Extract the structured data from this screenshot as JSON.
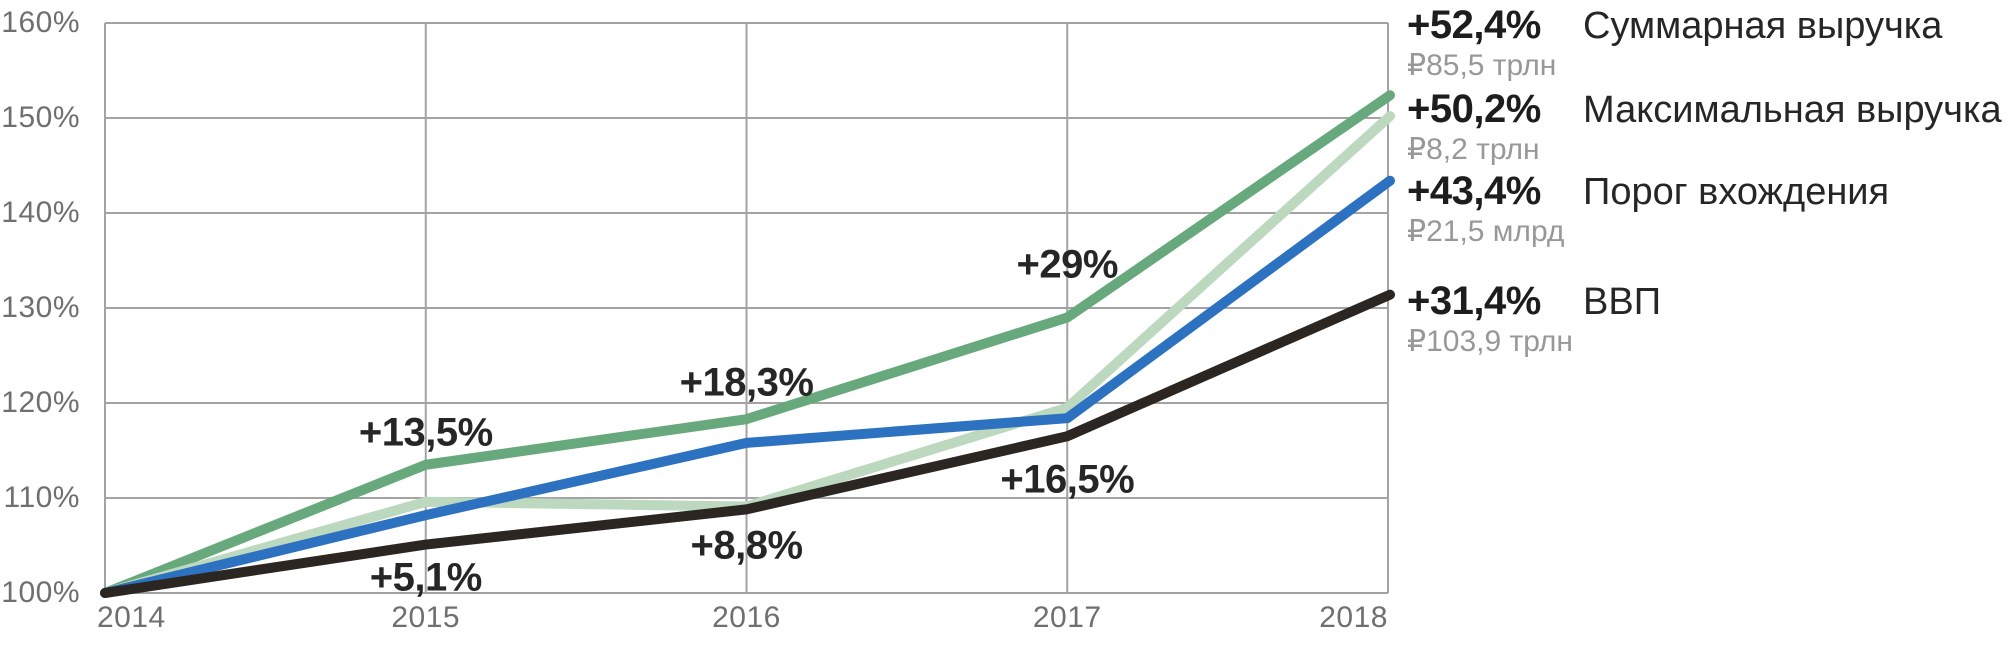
{
  "chart_data": {
    "type": "line",
    "title": "",
    "xlabel": "",
    "ylabel": "",
    "x": [
      2014,
      2015,
      2016,
      2017,
      2018
    ],
    "x_tick_labels": [
      "2014",
      "2015",
      "2016",
      "2017",
      "2018"
    ],
    "y_tick_labels": [
      "160%",
      "150%",
      "140%",
      "130%",
      "120%",
      "110%",
      "100%"
    ],
    "ylim": [
      100,
      160
    ],
    "grid": true,
    "legend_position": "right",
    "series": [
      {
        "name": "Суммарная выручка",
        "color": "#67a97c",
        "values": [
          100,
          113.5,
          118.3,
          129,
          152.4
        ],
        "final_label": "+52,4%",
        "final_value": "₽85,5 трлн"
      },
      {
        "name": "Максимальная выручка",
        "color": "#bcd9bf",
        "values": [
          100,
          109.6,
          109.1,
          119.5,
          150.2
        ],
        "final_label": "+50,2%",
        "final_value": "₽8,2 трлн"
      },
      {
        "name": "Порог вхождения",
        "color": "#2d72c1",
        "values": [
          100,
          108.2,
          115.8,
          118.4,
          143.4
        ],
        "final_label": "+43,4%",
        "final_value": "₽21,5 млрд"
      },
      {
        "name": "ВВП",
        "color": "#2b2622",
        "values": [
          100,
          105.1,
          108.8,
          116.5,
          131.4
        ],
        "final_label": "+31,4%",
        "final_value": "₽103,9 трлн"
      }
    ],
    "annotations": [
      {
        "label": "+13,5%",
        "year": 2015,
        "pct": 116.8,
        "series": "Суммарная выручка"
      },
      {
        "label": "+18,3%",
        "year": 2016,
        "pct": 122.1,
        "series": "Суммарная выручка"
      },
      {
        "label": "+29%",
        "year": 2017,
        "pct": 134.5,
        "series": "Суммарная выручка"
      },
      {
        "label": "+5,1%",
        "year": 2015,
        "pct": 101.6,
        "series": "ВВП"
      },
      {
        "label": "+8,8%",
        "year": 2016,
        "pct": 105.0,
        "series": "ВВП"
      },
      {
        "label": "+16,5%",
        "year": 2017,
        "pct": 111.9,
        "series": "ВВП"
      }
    ],
    "colors": {
      "grid": "#a3a3a3",
      "axis_text": "#6f6f6f",
      "annotation_text": "#262626",
      "legend_value_text": "#989898"
    }
  }
}
